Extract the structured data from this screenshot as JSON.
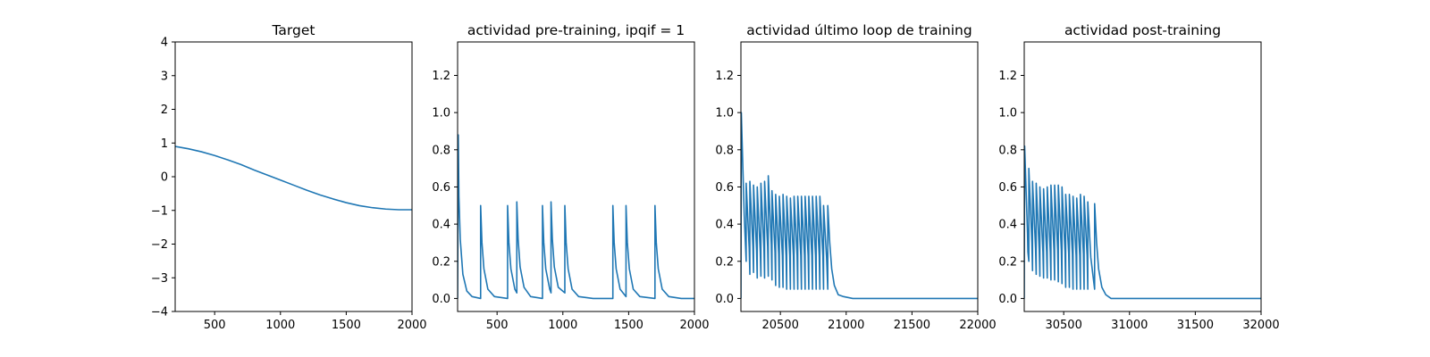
{
  "colors": {
    "series": "#1f77b4",
    "axes": "#000000",
    "background": "#ffffff"
  },
  "chart_data": [
    {
      "type": "line",
      "title": "Target",
      "xlim": [
        200,
        2000
      ],
      "ylim": [
        -4,
        4
      ],
      "xticks": [
        500,
        1000,
        1500,
        2000
      ],
      "yticks": [
        -4,
        -3,
        -2,
        -1,
        0,
        1,
        2,
        3,
        4
      ],
      "series": [
        {
          "x": [
            200,
            300,
            400,
            500,
            600,
            700,
            800,
            900,
            1000,
            1100,
            1200,
            1300,
            1400,
            1500,
            1600,
            1700,
            1800,
            1900,
            2000
          ],
          "y": [
            0.9,
            0.83,
            0.74,
            0.63,
            0.5,
            0.36,
            0.2,
            0.05,
            -0.1,
            -0.25,
            -0.4,
            -0.54,
            -0.66,
            -0.77,
            -0.86,
            -0.92,
            -0.96,
            -0.98,
            -0.98
          ]
        }
      ]
    },
    {
      "type": "line",
      "title": "actividad pre-training, ipqif = 1",
      "xlim": [
        200,
        2000
      ],
      "ylim": [
        -0.07,
        1.38
      ],
      "xticks": [
        500,
        1000,
        1500,
        2000
      ],
      "yticks": [
        0.0,
        0.2,
        0.4,
        0.6,
        0.8,
        1.0,
        1.2
      ],
      "series": [
        {
          "x": [
            200,
            205,
            210,
            220,
            240,
            270,
            310,
            375,
            375,
            385,
            400,
            430,
            480,
            580,
            580,
            590,
            605,
            635,
            650,
            650,
            660,
            675,
            705,
            755,
            845,
            845,
            855,
            870,
            900,
            910,
            910,
            920,
            935,
            965,
            1015,
            1015,
            1025,
            1040,
            1070,
            1120,
            1230,
            1380,
            1380,
            1390,
            1405,
            1435,
            1480,
            1480,
            1490,
            1505,
            1535,
            1585,
            1700,
            1700,
            1710,
            1725,
            1755,
            1805,
            1900,
            2000
          ],
          "y": [
            0.0,
            0.88,
            0.55,
            0.32,
            0.13,
            0.04,
            0.01,
            0.0,
            0.5,
            0.3,
            0.16,
            0.05,
            0.01,
            0.0,
            0.5,
            0.3,
            0.16,
            0.05,
            0.03,
            0.52,
            0.32,
            0.17,
            0.06,
            0.01,
            0.0,
            0.5,
            0.3,
            0.16,
            0.05,
            0.03,
            0.52,
            0.32,
            0.17,
            0.06,
            0.03,
            0.5,
            0.3,
            0.16,
            0.05,
            0.01,
            0.0,
            0.0,
            0.5,
            0.3,
            0.16,
            0.05,
            0.01,
            0.5,
            0.3,
            0.16,
            0.05,
            0.01,
            0.0,
            0.5,
            0.3,
            0.16,
            0.05,
            0.01,
            0.0,
            0.0
          ]
        }
      ]
    },
    {
      "type": "line",
      "title": "actividad último loop de training",
      "xlim": [
        20200,
        22000
      ],
      "ylim": [
        -0.07,
        1.38
      ],
      "xticks": [
        20500,
        21000,
        21500,
        22000
      ],
      "yticks": [
        0.0,
        0.2,
        0.4,
        0.6,
        0.8,
        1.0,
        1.2
      ],
      "series": [
        {
          "x": [
            20200,
            20203,
            20225,
            20240,
            20240,
            20263,
            20268,
            20268,
            20291,
            20296,
            20296,
            20319,
            20324,
            20324,
            20347,
            20352,
            20352,
            20375,
            20380,
            20380,
            20403,
            20408,
            20408,
            20431,
            20436,
            20436,
            20459,
            20464,
            20464,
            20487,
            20492,
            20492,
            20515,
            20520,
            20520,
            20543,
            20548,
            20548,
            20571,
            20576,
            20576,
            20599,
            20604,
            20604,
            20627,
            20632,
            20632,
            20655,
            20660,
            20660,
            20683,
            20688,
            20688,
            20711,
            20716,
            20716,
            20739,
            20744,
            20744,
            20767,
            20772,
            20772,
            20795,
            20800,
            20800,
            20823,
            20828,
            20828,
            20851,
            20860,
            20860,
            20875,
            20890,
            20910,
            20940,
            20980,
            21050,
            21200,
            21500,
            22000
          ],
          "y": [
            0.0,
            1.0,
            0.45,
            0.2,
            0.62,
            0.27,
            0.13,
            0.63,
            0.28,
            0.14,
            0.61,
            0.26,
            0.11,
            0.6,
            0.25,
            0.12,
            0.62,
            0.27,
            0.11,
            0.63,
            0.28,
            0.12,
            0.66,
            0.29,
            0.1,
            0.58,
            0.25,
            0.07,
            0.56,
            0.24,
            0.06,
            0.55,
            0.23,
            0.06,
            0.56,
            0.23,
            0.05,
            0.55,
            0.23,
            0.05,
            0.54,
            0.23,
            0.05,
            0.55,
            0.23,
            0.05,
            0.55,
            0.23,
            0.05,
            0.55,
            0.23,
            0.05,
            0.55,
            0.23,
            0.05,
            0.55,
            0.23,
            0.05,
            0.55,
            0.23,
            0.05,
            0.55,
            0.23,
            0.05,
            0.55,
            0.23,
            0.05,
            0.5,
            0.22,
            0.05,
            0.5,
            0.3,
            0.16,
            0.07,
            0.02,
            0.01,
            0.0,
            0.0,
            0.0,
            0.0
          ]
        }
      ]
    },
    {
      "type": "line",
      "title": "actividad post-training",
      "xlim": [
        30200,
        32000
      ],
      "ylim": [
        -0.07,
        1.38
      ],
      "xticks": [
        30500,
        31000,
        31500,
        32000
      ],
      "yticks": [
        0.0,
        0.2,
        0.4,
        0.6,
        0.8,
        1.0,
        1.2
      ],
      "series": [
        {
          "x": [
            30200,
            30203,
            30225,
            30228,
            30235,
            30235,
            30258,
            30263,
            30263,
            30286,
            30291,
            30291,
            30314,
            30319,
            30319,
            30342,
            30347,
            30347,
            30370,
            30375,
            30375,
            30398,
            30403,
            30403,
            30426,
            30431,
            30431,
            30454,
            30459,
            30459,
            30482,
            30487,
            30487,
            30510,
            30515,
            30515,
            30538,
            30543,
            30543,
            30566,
            30571,
            30571,
            30594,
            30599,
            30599,
            30622,
            30627,
            30627,
            30650,
            30655,
            30655,
            30678,
            30683,
            30683,
            30706,
            30735,
            30735,
            30750,
            30765,
            30790,
            30820,
            30860,
            30930,
            31100,
            31500,
            32000
          ],
          "y": [
            0.0,
            0.82,
            0.35,
            0.25,
            0.2,
            0.7,
            0.3,
            0.15,
            0.63,
            0.27,
            0.13,
            0.62,
            0.26,
            0.12,
            0.6,
            0.25,
            0.11,
            0.59,
            0.25,
            0.11,
            0.6,
            0.25,
            0.1,
            0.61,
            0.26,
            0.1,
            0.61,
            0.26,
            0.09,
            0.61,
            0.26,
            0.08,
            0.6,
            0.25,
            0.06,
            0.56,
            0.24,
            0.06,
            0.56,
            0.24,
            0.05,
            0.55,
            0.23,
            0.05,
            0.54,
            0.23,
            0.05,
            0.56,
            0.24,
            0.05,
            0.55,
            0.23,
            0.05,
            0.52,
            0.22,
            0.05,
            0.51,
            0.3,
            0.16,
            0.06,
            0.02,
            0.0,
            0.0,
            0.0,
            0.0,
            0.0
          ]
        }
      ]
    }
  ]
}
